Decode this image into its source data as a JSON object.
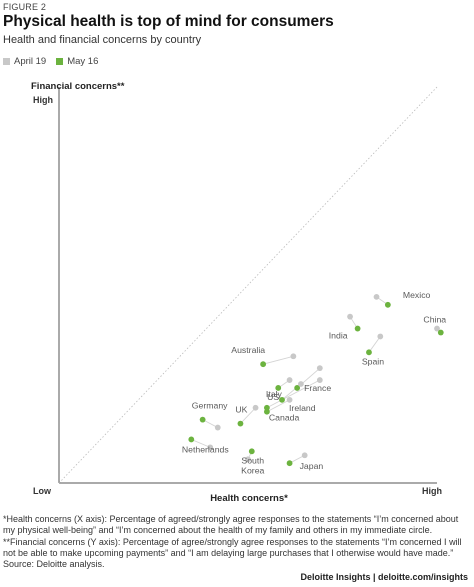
{
  "header": {
    "figure_label": "FIGURE 2",
    "title": "Physical health is top of mind for consumers",
    "subtitle": "Health and financial concerns by country"
  },
  "legend": [
    {
      "label": "April 19",
      "color": "#c8c8c8"
    },
    {
      "label": "May 16",
      "color": "#6cb33f"
    }
  ],
  "chart_data": {
    "type": "scatter",
    "title": "Physical health is top of mind for consumers",
    "subtitle": "Health and financial concerns by country",
    "xlabel": "Health concerns*",
    "ylabel": "Financial concerns**",
    "x_tick_labels": [
      "Low",
      "High"
    ],
    "y_tick_labels": [
      "Low",
      "High"
    ],
    "xlim": [
      0,
      100
    ],
    "ylim": [
      0,
      100
    ],
    "grid": false,
    "legend_position": "top-left",
    "has_diagonal_reference_line": true,
    "series": [
      {
        "name": "April 19",
        "color": "#c8c8c8"
      },
      {
        "name": "May 16",
        "color": "#6cb33f"
      }
    ],
    "points": [
      {
        "label": "Mexico",
        "april": [
          84,
          47
        ],
        "may": [
          87,
          45
        ]
      },
      {
        "label": "India",
        "april": [
          77,
          42
        ],
        "may": [
          79,
          39
        ]
      },
      {
        "label": "China",
        "april": [
          100,
          39
        ],
        "may": [
          101,
          38
        ]
      },
      {
        "label": "Spain",
        "april": [
          85,
          37
        ],
        "may": [
          82,
          33
        ]
      },
      {
        "label": "Italy",
        "april": [
          69,
          26
        ],
        "may": [
          55,
          19
        ]
      },
      {
        "label": "Australia",
        "april": [
          62,
          32
        ],
        "may": [
          54,
          30
        ]
      },
      {
        "label": "US",
        "april": [
          61,
          26
        ],
        "may": [
          58,
          24
        ]
      },
      {
        "label": "France",
        "april": [
          69,
          29
        ],
        "may": [
          63,
          24
        ]
      },
      {
        "label": "Ireland",
        "april": [
          64,
          25
        ],
        "may": [
          59,
          21
        ]
      },
      {
        "label": "UK",
        "april": [
          52,
          19
        ],
        "may": [
          48,
          15
        ]
      },
      {
        "label": "Canada",
        "april": [
          61,
          21
        ],
        "may": [
          55,
          18
        ]
      },
      {
        "label": "Germany",
        "april": [
          42,
          14
        ],
        "may": [
          38,
          16
        ]
      },
      {
        "label": "Netherlands",
        "april": [
          40,
          9
        ],
        "may": [
          35,
          11
        ]
      },
      {
        "label": "South Korea",
        "april": [
          50,
          6
        ],
        "may": [
          51,
          8
        ]
      },
      {
        "label": "Japan",
        "april": [
          65,
          7
        ],
        "may": [
          61,
          5
        ]
      }
    ]
  },
  "footnotes": {
    "health": "*Health concerns (X axis): Percentage of agreed/strongly agree responses to the statements “I’m concerned about my physical well-being” and “I’m concerned about the health of my family and others in my immediate circle.",
    "financial": "**Financial concerns (Y axis): Percentage of agree/strongly agree responses to the statements “I’m concerned I will not be able to make upcoming payments” and “I am delaying large purchases that I otherwise would have made.”",
    "source": "Source: Deloitte analysis."
  },
  "branding": "Deloitte Insights | deloitte.com/insights"
}
